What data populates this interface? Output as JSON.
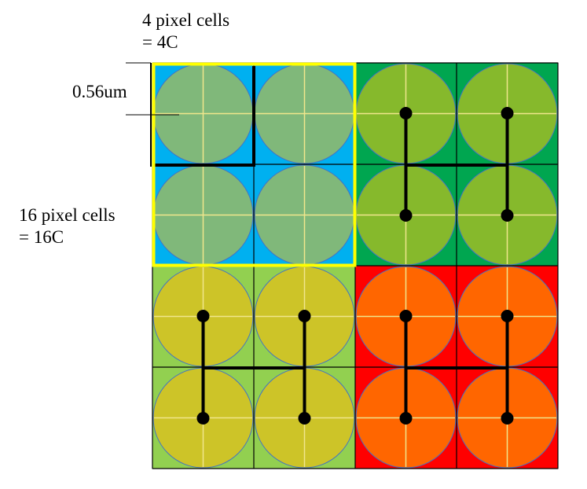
{
  "labels": {
    "four_cells_line1": "4 pixel cells",
    "four_cells_line2": "= 4C",
    "pitch": "0.56um",
    "sixteen_cells_line1": "16 pixel cells",
    "sixteen_cells_line2": "= 16C"
  },
  "colors": {
    "quadrants": [
      {
        "name": "top-left",
        "cell": "#00b0f0",
        "circle": "#80b87a",
        "wiring": "single-junction"
      },
      {
        "name": "top-right",
        "cell": "#00a650",
        "circle": "#86b92c",
        "wiring": "H"
      },
      {
        "name": "bottom-left",
        "cell": "#92d050",
        "circle": "#cdc428",
        "wiring": "H"
      },
      {
        "name": "bottom-right",
        "cell": "#ff0000",
        "circle": "#ff6600",
        "wiring": "H"
      }
    ],
    "grid_line": "#000000",
    "cell_cross": "#f0e68c",
    "circle_edge": "#4472c4",
    "highlight": "#ffff00",
    "wire": "#000000"
  }
}
